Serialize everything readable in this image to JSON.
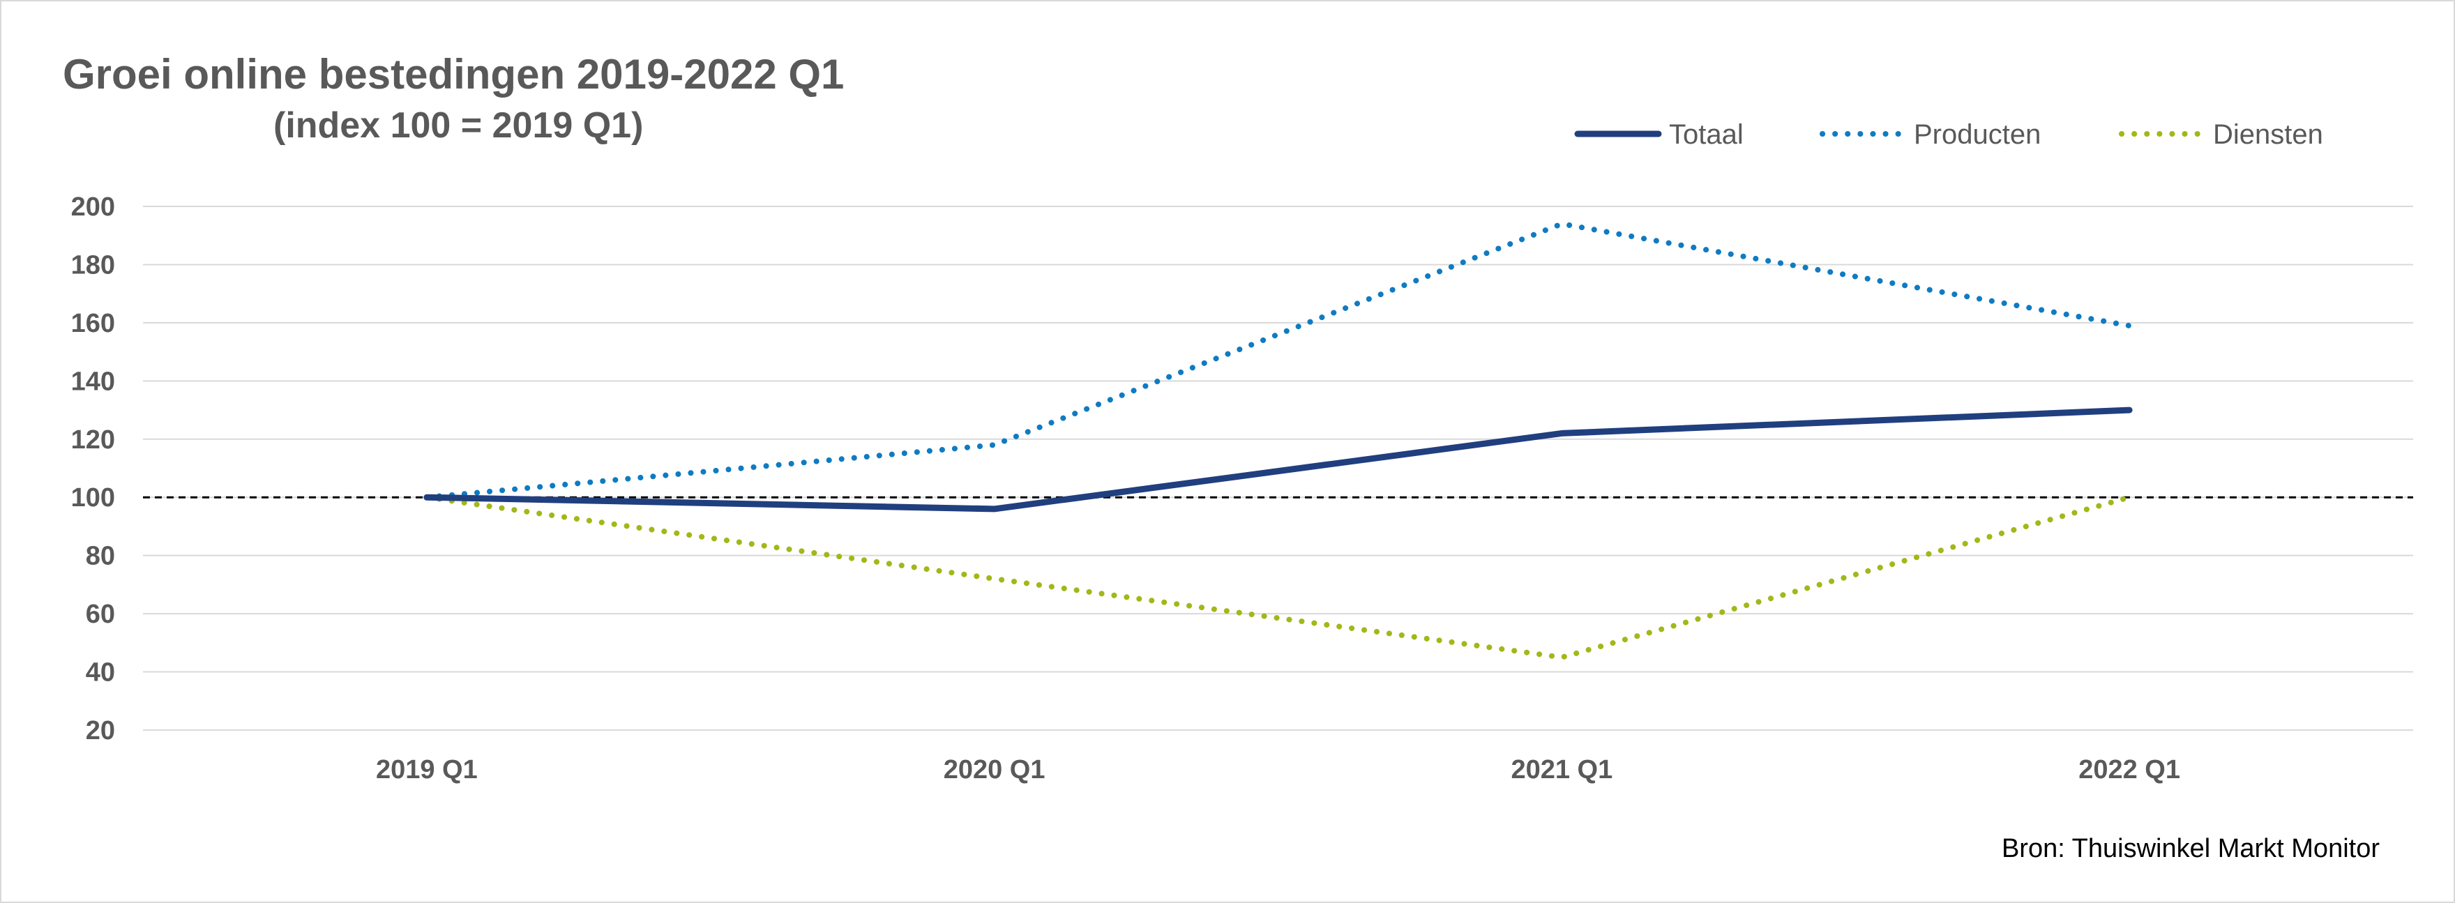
{
  "chart_data": {
    "type": "line",
    "title": "Groei online bestedingen 2019-2022 Q1",
    "subtitle": "(index 100 = 2019 Q1)",
    "categories": [
      "2019 Q1",
      "2020 Q1",
      "2021 Q1",
      "2022 Q1"
    ],
    "series": [
      {
        "name": "Totaal",
        "values": [
          100,
          96,
          122,
          130
        ],
        "color": "#203f7f",
        "style": "solid"
      },
      {
        "name": "Producten",
        "values": [
          100,
          118,
          194,
          159
        ],
        "color": "#0f7bc2",
        "style": "dotted"
      },
      {
        "name": "Diensten",
        "values": [
          100,
          72,
          45,
          100
        ],
        "color": "#a3b719",
        "style": "dotted"
      }
    ],
    "ylim": [
      20,
      200
    ],
    "yticks": [
      20,
      40,
      60,
      80,
      100,
      120,
      140,
      160,
      180,
      200
    ],
    "reference_line": {
      "value": 100,
      "style": "dashed",
      "color": "#000000"
    },
    "grid": true,
    "legend_position": "top-right"
  },
  "source": "Bron: Thuiswinkel Markt Monitor"
}
